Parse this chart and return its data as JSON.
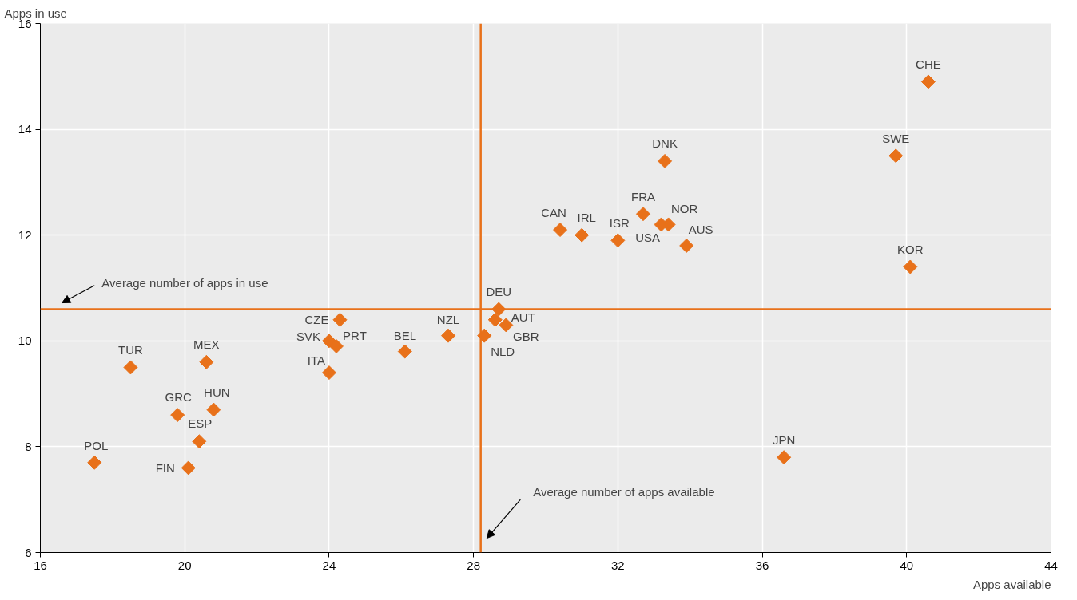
{
  "chart_data": {
    "type": "scatter",
    "xlabel": "Apps available",
    "ylabel": "Apps in use",
    "x": [
      40.6,
      39.7,
      40.1,
      36.6,
      33.3,
      32.7,
      33.4,
      33.2,
      32.0,
      33.9,
      30.4,
      31.0,
      28.7,
      28.6,
      28.9,
      28.3,
      27.3,
      26.1,
      24.3,
      24.0,
      24.2,
      24.0,
      20.6,
      18.5,
      20.8,
      19.8,
      20.4,
      20.1,
      17.5
    ],
    "series": [
      {
        "color": "#e8711a",
        "values": [
          14.9,
          13.5,
          11.4,
          7.8,
          13.4,
          12.4,
          12.2,
          12.2,
          11.9,
          11.8,
          12.1,
          12.0,
          10.6,
          10.4,
          10.3,
          10.1,
          10.1,
          9.8,
          10.4,
          10.0,
          9.9,
          9.4,
          9.6,
          9.5,
          8.7,
          8.6,
          8.1,
          7.6,
          7.7
        ]
      }
    ],
    "annotations": [
      {
        "text": "CHE",
        "x": 40.6,
        "y": 14.9
      },
      {
        "text": "SWE",
        "x": 39.7,
        "y": 13.5
      },
      {
        "text": "KOR",
        "x": 40.1,
        "y": 11.4
      },
      {
        "text": "JPN",
        "x": 36.6,
        "y": 7.8
      },
      {
        "text": "DNK",
        "x": 33.3,
        "y": 13.4
      },
      {
        "text": "FRA",
        "x": 32.7,
        "y": 12.4
      },
      {
        "text": "NOR",
        "x": 33.4,
        "y": 12.2
      },
      {
        "text": "USA",
        "x": 33.2,
        "y": 12.2
      },
      {
        "text": "ISR",
        "x": 32.0,
        "y": 11.9
      },
      {
        "text": "AUS",
        "x": 33.9,
        "y": 11.8
      },
      {
        "text": "CAN",
        "x": 30.4,
        "y": 12.1
      },
      {
        "text": "IRL",
        "x": 31.0,
        "y": 12.0
      },
      {
        "text": "DEU",
        "x": 28.7,
        "y": 10.6
      },
      {
        "text": "AUT",
        "x": 28.6,
        "y": 10.4
      },
      {
        "text": "GBR",
        "x": 28.9,
        "y": 10.3
      },
      {
        "text": "NLD",
        "x": 28.3,
        "y": 10.1
      },
      {
        "text": "NZL",
        "x": 27.3,
        "y": 10.1
      },
      {
        "text": "BEL",
        "x": 26.1,
        "y": 9.8
      },
      {
        "text": "CZE",
        "x": 24.3,
        "y": 10.4
      },
      {
        "text": "SVK",
        "x": 24.0,
        "y": 10.0
      },
      {
        "text": "PRT",
        "x": 24.2,
        "y": 9.9
      },
      {
        "text": "ITA",
        "x": 24.0,
        "y": 9.4
      },
      {
        "text": "MEX",
        "x": 20.6,
        "y": 9.6
      },
      {
        "text": "TUR",
        "x": 18.5,
        "y": 9.5
      },
      {
        "text": "HUN",
        "x": 20.8,
        "y": 8.7
      },
      {
        "text": "GRC",
        "x": 19.8,
        "y": 8.6
      },
      {
        "text": "ESP",
        "x": 20.4,
        "y": 8.1
      },
      {
        "text": "FIN",
        "x": 20.1,
        "y": 7.6
      },
      {
        "text": "POL",
        "x": 17.5,
        "y": 7.7
      }
    ],
    "ref_lines": [
      {
        "axis": "y",
        "value": 10.6,
        "label": "Average number of apps in use",
        "color": "#e8711a"
      },
      {
        "axis": "x",
        "value": 28.2,
        "label": "Average number of apps available",
        "color": "#e8711a"
      }
    ],
    "xlim": [
      16,
      44
    ],
    "xticks": [
      16,
      20,
      24,
      28,
      32,
      36,
      40,
      44
    ],
    "ylim": [
      6,
      16
    ],
    "yticks": [
      6,
      8,
      10,
      12,
      14,
      16
    ],
    "grid": true,
    "marker": "diamond"
  }
}
